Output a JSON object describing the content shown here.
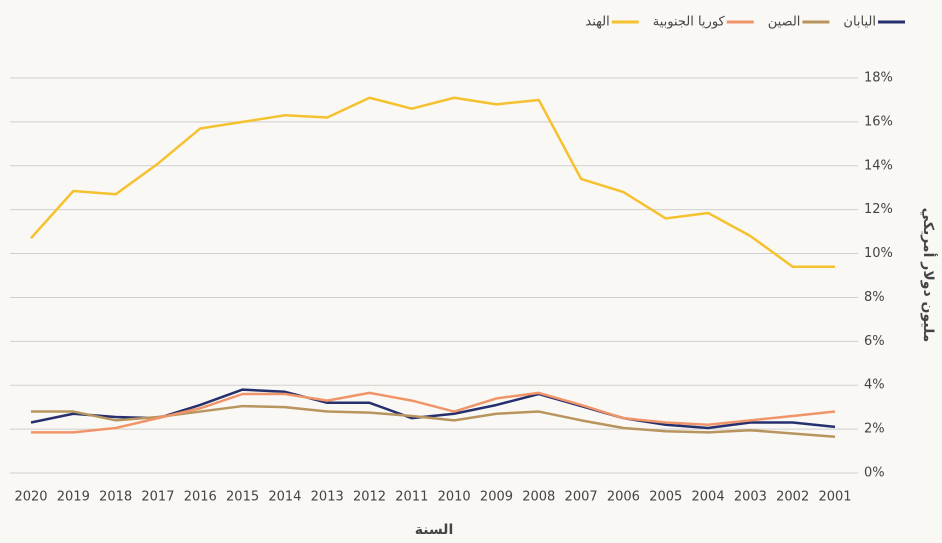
{
  "chart_data": {
    "type": "line",
    "xlabel": "السنة",
    "ylabel": "مليون دولار أمريكي",
    "categories": [
      "2020",
      "2019",
      "2018",
      "2017",
      "2016",
      "2015",
      "2014",
      "2013",
      "2012",
      "2011",
      "2010",
      "2009",
      "2008",
      "2007",
      "2006",
      "2005",
      "2004",
      "2003",
      "2002",
      "2001"
    ],
    "series": [
      {
        "name": "اليابان",
        "color": "#27306e",
        "values": [
          2.3,
          2.7,
          2.55,
          2.5,
          3.1,
          3.8,
          3.7,
          3.2,
          3.2,
          2.5,
          2.7,
          3.1,
          3.6,
          3.05,
          2.5,
          2.2,
          2.05,
          2.3,
          2.3,
          2.1
        ]
      },
      {
        "name": "الصين",
        "color": "#b8955e",
        "values": [
          2.8,
          2.8,
          2.4,
          2.55,
          2.8,
          3.05,
          3.0,
          2.8,
          2.75,
          2.6,
          2.4,
          2.7,
          2.8,
          2.4,
          2.05,
          1.9,
          1.85,
          1.95,
          1.8,
          1.65
        ]
      },
      {
        "name": "كوريا الجنوبية",
        "color": "#f0956a",
        "values": [
          1.85,
          1.85,
          2.05,
          2.5,
          2.95,
          3.6,
          3.6,
          3.3,
          3.65,
          3.3,
          2.8,
          3.4,
          3.65,
          3.1,
          2.5,
          2.3,
          2.2,
          2.4,
          2.6,
          2.8
        ]
      },
      {
        "name": "الهند",
        "color": "#f5c12e",
        "values": [
          10.7,
          12.85,
          12.7,
          14.1,
          15.7,
          16.0,
          16.3,
          16.2,
          17.1,
          16.6,
          17.1,
          16.8,
          17.0,
          13.4,
          12.8,
          11.6,
          11.85,
          10.8,
          9.4,
          9.4
        ]
      }
    ],
    "ylim": [
      0,
      18
    ],
    "yticks": [
      {
        "value": 0,
        "label": "0%"
      },
      {
        "value": 2,
        "label": "2%"
      },
      {
        "value": 4,
        "label": "4%"
      },
      {
        "value": 6,
        "label": "6%"
      },
      {
        "value": 8,
        "label": "8%"
      },
      {
        "value": 10,
        "label": "10%"
      },
      {
        "value": 12,
        "label": "12%"
      },
      {
        "value": 14,
        "label": "14%"
      },
      {
        "value": 16,
        "label": "16%"
      },
      {
        "value": 18,
        "label": "18%"
      }
    ],
    "grid": true,
    "legend": "top-right"
  }
}
